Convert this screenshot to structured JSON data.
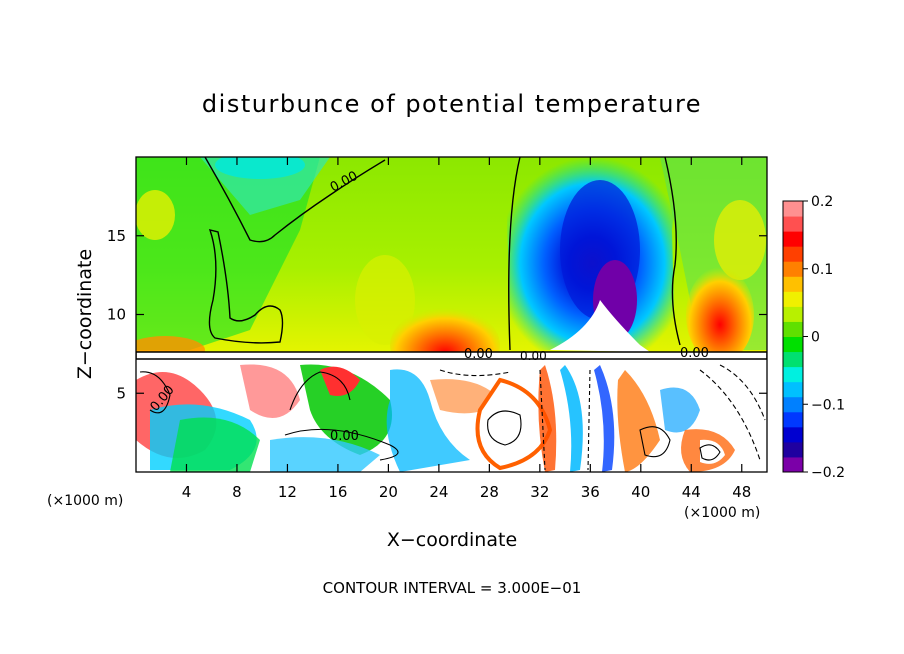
{
  "chart_data": {
    "type": "heatmap",
    "title": "disturbunce of potential temperature",
    "xlabel": "X−coordinate",
    "ylabel": "Z−coordinate",
    "x_unit": "(×1000 m)",
    "x_unit_right": "(×1000 m)",
    "xlim": [
      0,
      50
    ],
    "ylim": [
      0,
      20
    ],
    "x_ticks": [
      4,
      8,
      12,
      16,
      20,
      24,
      28,
      32,
      36,
      40,
      44,
      48
    ],
    "y_ticks": [
      5,
      10,
      15
    ],
    "footnote": "CONTOUR INTERVAL = 3.000E−01",
    "contour_labels": [
      "0.00",
      "0.00",
      "0.00",
      "0.00",
      "0.00",
      "0.00"
    ],
    "colorbar": {
      "range": [
        -0.2,
        0.2
      ],
      "tick_values": [
        0.2,
        0.1,
        0,
        -0.1,
        -0.2
      ],
      "tick_labels": [
        "0.2",
        "0.1",
        "0",
        "−0.1",
        "−0.2"
      ],
      "colors": [
        "#7b00a8",
        "#1f00a0",
        "#0000d0",
        "#0038ff",
        "#0080ff",
        "#00c0ff",
        "#00f0e0",
        "#00e070",
        "#00e000",
        "#60e000",
        "#b8f000",
        "#f0f000",
        "#ffc000",
        "#ff8000",
        "#ff4000",
        "#ff0000",
        "#ff5050",
        "#ff9090"
      ]
    }
  }
}
